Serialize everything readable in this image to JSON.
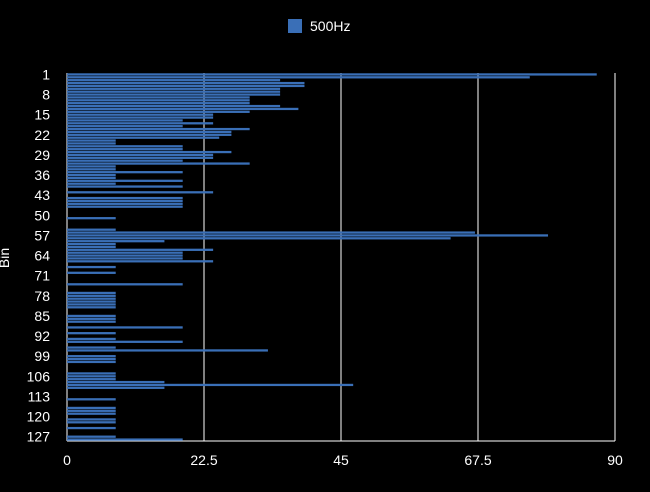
{
  "chart_data": {
    "type": "bar",
    "orientation": "horizontal",
    "ylabel": "Bin",
    "xlim": [
      0,
      90
    ],
    "x_ticks": [
      0,
      22.5,
      45,
      67.5,
      90
    ],
    "x_tick_labels": [
      "0",
      "22.5",
      "45",
      "67.5",
      "90"
    ],
    "y_tick_labels": [
      "1",
      "8",
      "15",
      "22",
      "29",
      "36",
      "43",
      "50",
      "57",
      "64",
      "71",
      "78",
      "85",
      "92",
      "99",
      "106",
      "113",
      "120",
      "127"
    ],
    "categories_count": 128,
    "grid": true,
    "legend_position": "top-center",
    "series": [
      {
        "name": "500Hz",
        "color": "#3a6fb7",
        "values": [
          87,
          76,
          35,
          39,
          39,
          35,
          35,
          35,
          30,
          30,
          30,
          35,
          38,
          30,
          24,
          24,
          19,
          24,
          19,
          30,
          27,
          27,
          25,
          8,
          8,
          19,
          19,
          27,
          24,
          24,
          19,
          30,
          8,
          8,
          19,
          8,
          8,
          19,
          8,
          19,
          0,
          24,
          0,
          19,
          19,
          19,
          19,
          0,
          0,
          0,
          8,
          0,
          0,
          0,
          8,
          67,
          79,
          63,
          16,
          8,
          8,
          24,
          19,
          19,
          19,
          24,
          0,
          8,
          0,
          8,
          0,
          0,
          0,
          19,
          0,
          0,
          8,
          8,
          8,
          8,
          8,
          8,
          0,
          0,
          8,
          8,
          8,
          0,
          19,
          0,
          8,
          0,
          8,
          19,
          0,
          8,
          33,
          0,
          8,
          8,
          8,
          0,
          0,
          0,
          8,
          8,
          8,
          16,
          47,
          16,
          0,
          0,
          0,
          8,
          0,
          0,
          8,
          8,
          8,
          0,
          8,
          8,
          0,
          8,
          0,
          0,
          8,
          19
        ]
      }
    ]
  }
}
